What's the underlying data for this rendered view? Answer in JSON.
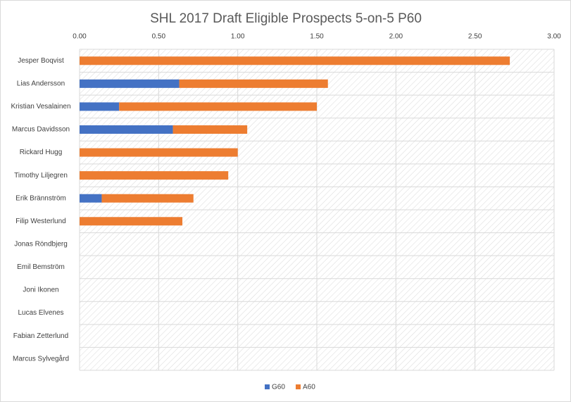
{
  "chart_data": {
    "type": "stacked-bar-horizontal",
    "title": "SHL 2017 Draft Eligible Prospects 5-on-5 P60",
    "categories": [
      "Jesper Boqvist",
      "Lias Andersson",
      "Kristian Vesalainen",
      "Marcus Davidsson",
      "Rickard Hugg",
      "Timothy Liljegren",
      "Erik Brännström",
      "Filip Westerlund",
      "Jonas Röndbjerg",
      "Emil Bemström",
      "Joni Ikonen",
      "Lucas Elvenes",
      "Fabian Zetterlund",
      "Marcus Sylvegård"
    ],
    "series": [
      {
        "name": "G60",
        "color": "#4472c4",
        "values": [
          0,
          0.63,
          0.25,
          0.59,
          0,
          0,
          0.14,
          0,
          0,
          0,
          0,
          0,
          0,
          0
        ]
      },
      {
        "name": "A60",
        "color": "#ed7d31",
        "values": [
          2.72,
          0.94,
          1.25,
          0.47,
          1.0,
          0.94,
          0.58,
          0.65,
          0,
          0,
          0,
          0,
          0,
          0
        ]
      }
    ],
    "xlim": [
      0,
      3
    ],
    "xticks": [
      {
        "value": 0,
        "label": "0.00"
      },
      {
        "value": 0.5,
        "label": "0.50"
      },
      {
        "value": 1,
        "label": "1.00"
      },
      {
        "value": 1.5,
        "label": "1.50"
      },
      {
        "value": 2,
        "label": "2.00"
      },
      {
        "value": 2.5,
        "label": "2.50"
      },
      {
        "value": 3,
        "label": "3.00"
      }
    ],
    "grid": true,
    "legend": "bottom"
  }
}
